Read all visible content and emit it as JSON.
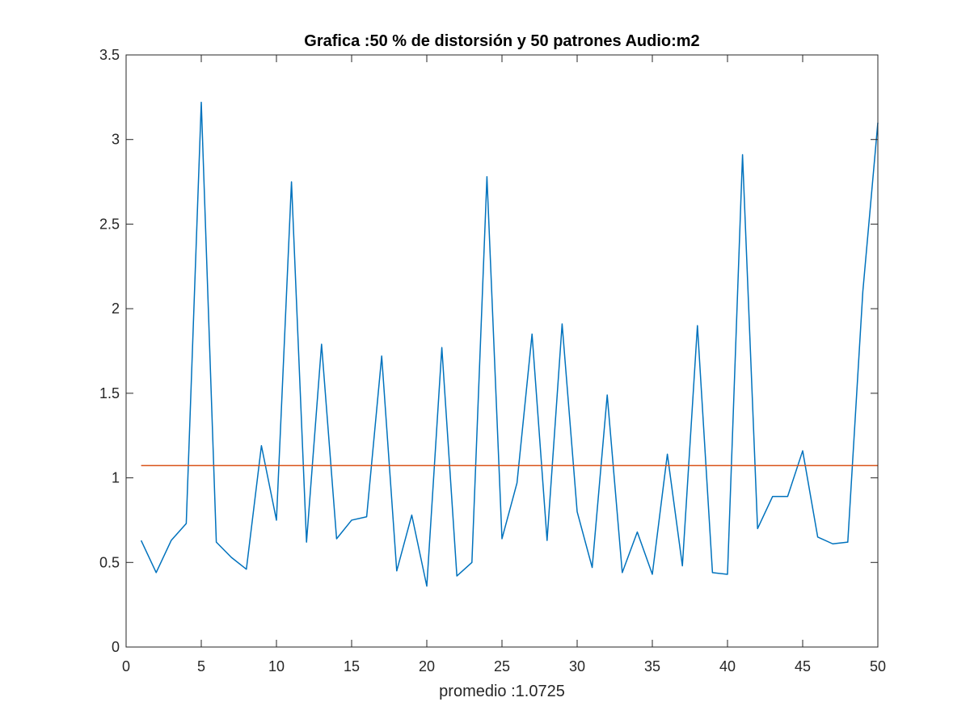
{
  "chart_data": {
    "type": "line",
    "title": "Grafica :50 % de distorsión y 50 patrones Audio:m2",
    "xlabel": "promedio :1.0725",
    "ylabel": "",
    "xlim": [
      0,
      50
    ],
    "ylim": [
      0,
      3.5
    ],
    "xticks": [
      0,
      5,
      10,
      15,
      20,
      25,
      30,
      35,
      40,
      45,
      50
    ],
    "yticks": [
      0,
      0.5,
      1,
      1.5,
      2,
      2.5,
      3,
      3.5
    ],
    "xtick_labels": [
      "0",
      "5",
      "10",
      "15",
      "20",
      "25",
      "30",
      "35",
      "40",
      "45",
      "50"
    ],
    "ytick_labels": [
      "0",
      "0.5",
      "1",
      "1.5",
      "2",
      "2.5",
      "3",
      "3.5"
    ],
    "grid": false,
    "series": [
      {
        "color": "#0072BD",
        "x": [
          1,
          2,
          3,
          4,
          5,
          6,
          7,
          8,
          9,
          10,
          11,
          12,
          13,
          14,
          15,
          16,
          17,
          18,
          19,
          20,
          21,
          22,
          23,
          24,
          25,
          26,
          27,
          28,
          29,
          30,
          31,
          32,
          33,
          34,
          35,
          36,
          37,
          38,
          39,
          40,
          41,
          42,
          43,
          44,
          45,
          46,
          47,
          48,
          49,
          50
        ],
        "values": [
          0.63,
          0.44,
          0.63,
          0.73,
          3.22,
          0.62,
          0.53,
          0.46,
          1.19,
          0.75,
          2.75,
          0.62,
          1.79,
          0.64,
          0.75,
          0.77,
          1.72,
          0.45,
          0.78,
          0.36,
          1.77,
          0.42,
          0.5,
          2.78,
          0.64,
          0.97,
          1.85,
          0.63,
          1.91,
          0.8,
          0.47,
          1.49,
          0.44,
          0.68,
          0.43,
          1.14,
          0.48,
          1.9,
          0.44,
          0.43,
          2.91,
          0.7,
          0.89,
          0.89,
          1.16,
          0.65,
          0.61,
          0.62,
          2.1,
          3.1
        ]
      },
      {
        "color": "#D95319",
        "x": [
          1,
          50
        ],
        "values": [
          1.0725,
          1.0725
        ]
      }
    ]
  }
}
